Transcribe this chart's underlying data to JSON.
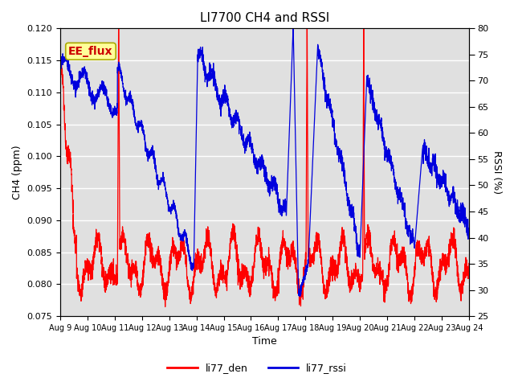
{
  "title": "LI7700 CH4 and RSSI",
  "xlabel": "Time",
  "ylabel_left": "CH4 (ppm)",
  "ylabel_right": "RSSI (%)",
  "annotation": "EE_flux",
  "ylim_left": [
    0.075,
    0.12
  ],
  "ylim_right": [
    25,
    80
  ],
  "yticks_left": [
    0.075,
    0.08,
    0.085,
    0.09,
    0.095,
    0.1,
    0.105,
    0.11,
    0.115,
    0.12
  ],
  "yticks_right": [
    25,
    30,
    35,
    40,
    45,
    50,
    55,
    60,
    65,
    70,
    75,
    80
  ],
  "xtick_labels": [
    "Aug 9",
    "Aug 10",
    "Aug 11",
    "Aug 12",
    "Aug 13",
    "Aug 14",
    "Aug 15",
    "Aug 16",
    "Aug 17",
    "Aug 18",
    "Aug 19",
    "Aug 20",
    "Aug 21",
    "Aug 22",
    "Aug 23",
    "Aug 24"
  ],
  "color_red": "#FF0000",
  "color_blue": "#0000DD",
  "legend_labels": [
    "li77_den",
    "li77_rssi"
  ],
  "bg_color": "#E0E0E0",
  "annotation_bg": "#FFFF99",
  "annotation_color": "#CC0000",
  "annotation_edge": "#AAAA00"
}
